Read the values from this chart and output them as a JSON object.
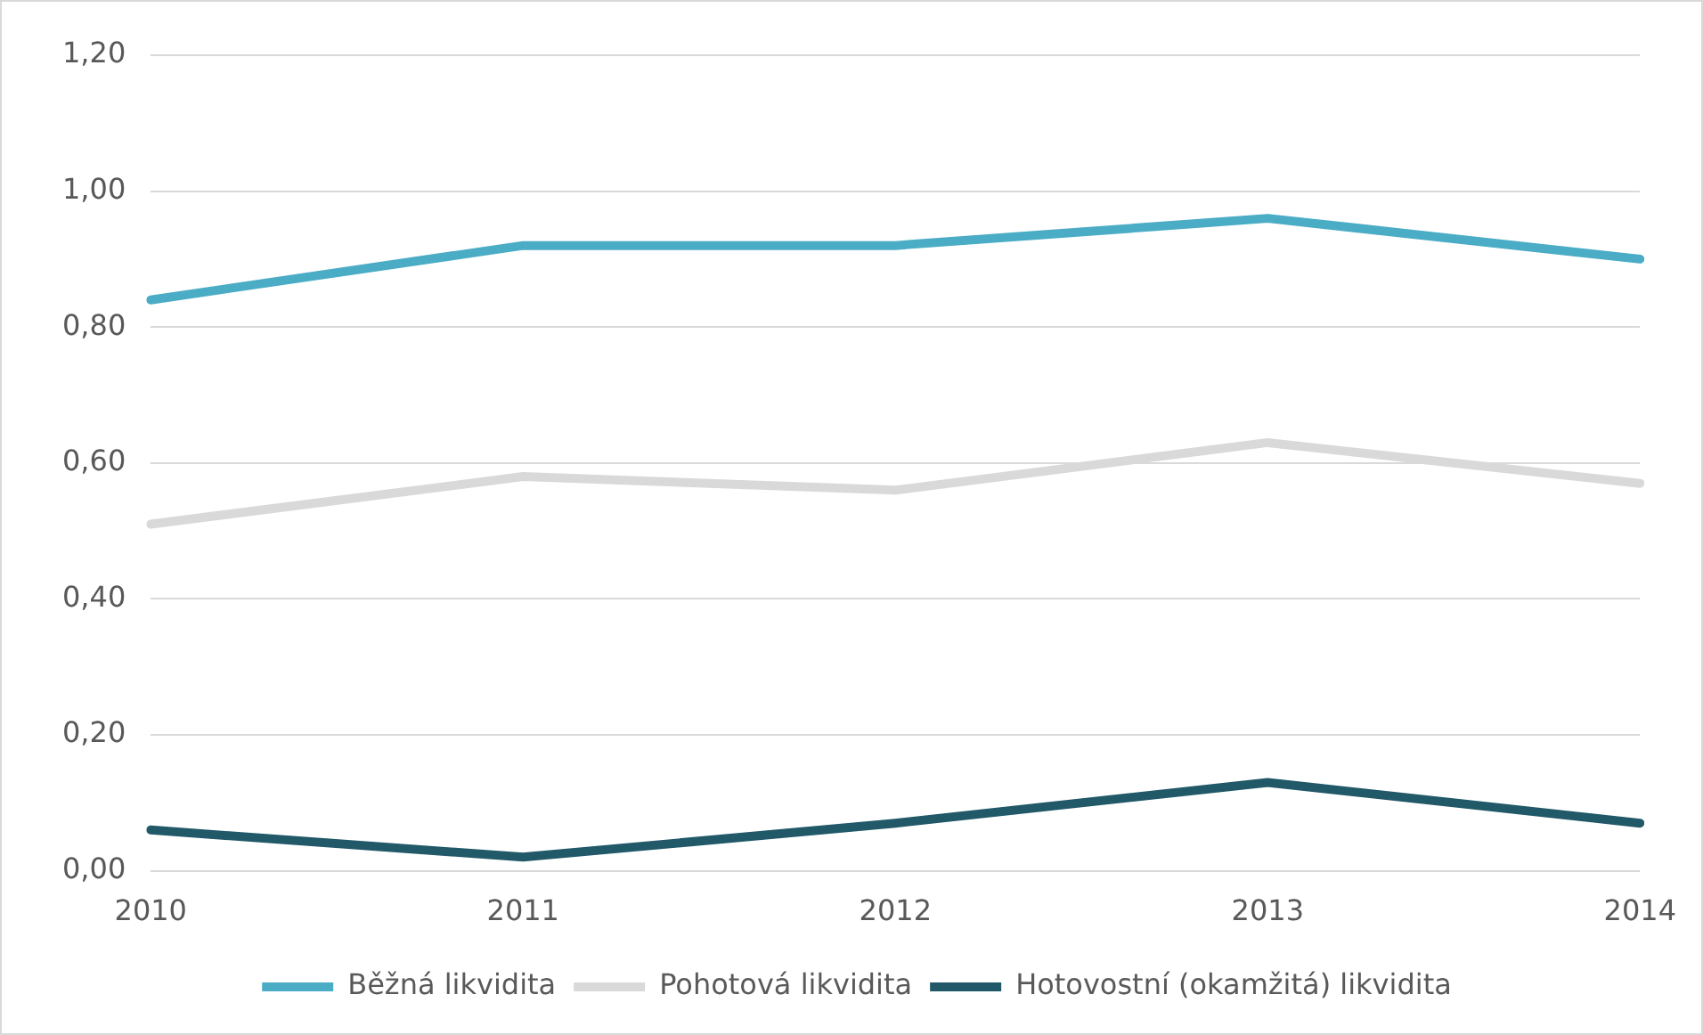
{
  "chart_data": {
    "type": "line",
    "categories": [
      "2010",
      "2011",
      "2012",
      "2013",
      "2014"
    ],
    "series": [
      {
        "name": "Běžná likvidita",
        "color": "#4bacc6",
        "values": [
          0.84,
          0.92,
          0.92,
          0.96,
          0.9
        ]
      },
      {
        "name": "Pohotová likvidita",
        "color": "#d9d9d9",
        "values": [
          0.51,
          0.58,
          0.56,
          0.63,
          0.57
        ]
      },
      {
        "name": "Hotovostní (okamžitá) likvidita",
        "color": "#215968",
        "values": [
          0.06,
          0.02,
          0.07,
          0.13,
          0.07
        ]
      }
    ],
    "ylim": [
      0,
      1.2
    ],
    "yticks": [
      {
        "value": 0,
        "label": "0,00"
      },
      {
        "value": 0.2,
        "label": "0,20"
      },
      {
        "value": 0.4,
        "label": "0,40"
      },
      {
        "value": 0.6,
        "label": "0,60"
      },
      {
        "value": 0.8,
        "label": "0,80"
      },
      {
        "value": 1,
        "label": "1,00"
      },
      {
        "value": 1.2,
        "label": "1,20"
      }
    ],
    "grid": "y",
    "legend": "bottom",
    "marker": "none",
    "line_style": "solid"
  }
}
